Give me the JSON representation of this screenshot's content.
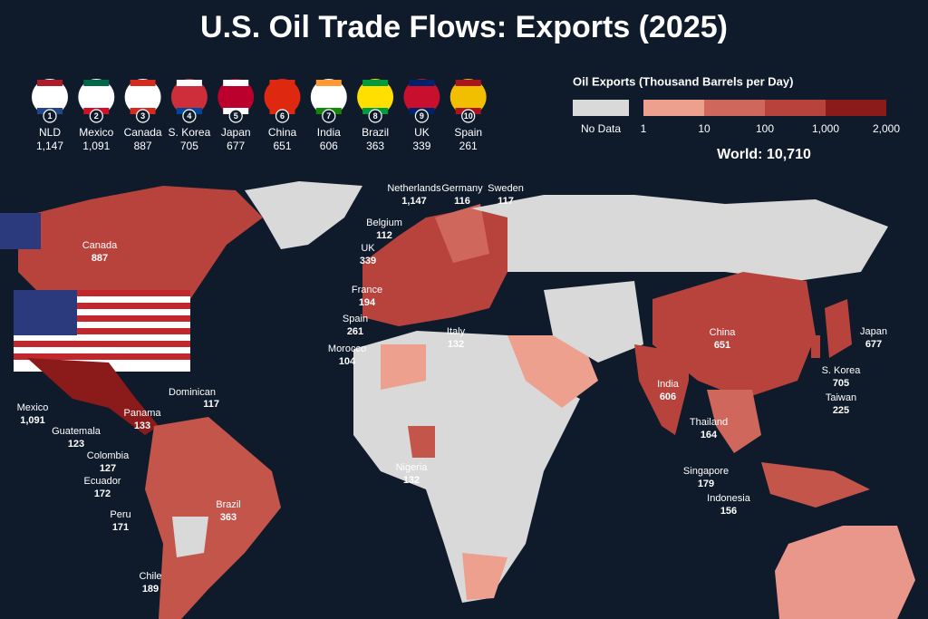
{
  "title": "U.S. Oil Trade Flows: Exports (2025)",
  "top_countries": [
    {
      "rank": 1,
      "name": "NLD",
      "value": "1,147"
    },
    {
      "rank": 2,
      "name": "Mexico",
      "value": "1,091"
    },
    {
      "rank": 3,
      "name": "Canada",
      "value": "887"
    },
    {
      "rank": 4,
      "name": "S. Korea",
      "value": "705"
    },
    {
      "rank": 5,
      "name": "Japan",
      "value": "677"
    },
    {
      "rank": 6,
      "name": "China",
      "value": "651"
    },
    {
      "rank": 7,
      "name": "India",
      "value": "606"
    },
    {
      "rank": 8,
      "name": "Brazil",
      "value": "363"
    },
    {
      "rank": 9,
      "name": "UK",
      "value": "339"
    },
    {
      "rank": 10,
      "name": "Spain",
      "value": "261"
    }
  ],
  "legend": {
    "title": "Oil Exports (Thousand Barrels per Day)",
    "no_data": "No Data",
    "ticks": [
      "1",
      "10",
      "100",
      "1,000",
      "2,000"
    ]
  },
  "world": "World: 10,710",
  "map_labels": [
    {
      "name": "Netherlands",
      "value": "1,147"
    },
    {
      "name": "Germany",
      "value": "116"
    },
    {
      "name": "Sweden",
      "value": "117"
    },
    {
      "name": "Belgium",
      "value": "112"
    },
    {
      "name": "UK",
      "value": "339"
    },
    {
      "name": "France",
      "value": "194"
    },
    {
      "name": "Spain",
      "value": "261"
    },
    {
      "name": "Morocco",
      "value": "104"
    },
    {
      "name": "Italy",
      "value": "132"
    },
    {
      "name": "Canada",
      "value": "887"
    },
    {
      "name": "Dominican",
      "value": "117"
    },
    {
      "name": "Panama",
      "value": "133"
    },
    {
      "name": "Mexico",
      "value": "1,091"
    },
    {
      "name": "Guatemala",
      "value": "123"
    },
    {
      "name": "Colombia",
      "value": "127"
    },
    {
      "name": "Ecuador",
      "value": "172"
    },
    {
      "name": "Peru",
      "value": "171"
    },
    {
      "name": "Brazil",
      "value": "363"
    },
    {
      "name": "Chile",
      "value": "189"
    },
    {
      "name": "Nigeria",
      "value": "132"
    },
    {
      "name": "China",
      "value": "651"
    },
    {
      "name": "India",
      "value": "606"
    },
    {
      "name": "S. Korea",
      "value": "705"
    },
    {
      "name": "Japan",
      "value": "677"
    },
    {
      "name": "Taiwan",
      "value": "225"
    },
    {
      "name": "Thailand",
      "value": "164"
    },
    {
      "name": "Singapore",
      "value": "179"
    },
    {
      "name": "Indonesia",
      "value": "156"
    }
  ]
}
